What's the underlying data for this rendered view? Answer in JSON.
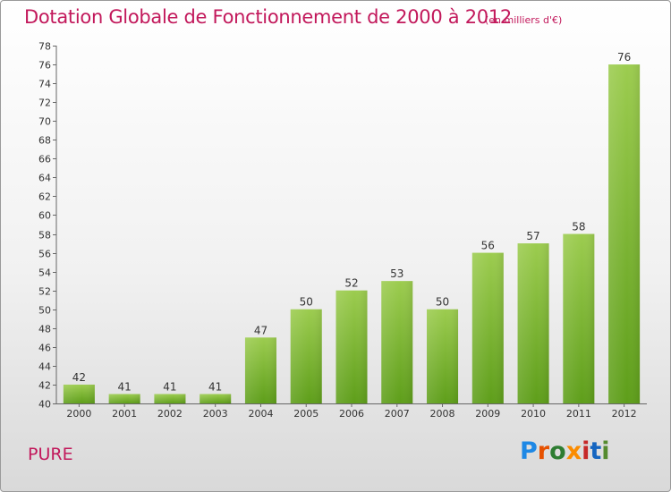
{
  "header": {
    "title": "Dotation Globale de Fonctionnement de 2000 à 2012",
    "subtitle": "(en milliers d'€)"
  },
  "footer": {
    "commune": "PURE",
    "logo_letters": [
      "P",
      "r",
      "o",
      "x",
      "i",
      "t",
      "i"
    ],
    "logo_colors": [
      "#1e88e5",
      "#e65100",
      "#2e7d32",
      "#fb8c00",
      "#c62828",
      "#1565c0",
      "#558b2f"
    ]
  },
  "colors": {
    "title": "#c2185b",
    "bar_light": "#9ccc4f",
    "bar_dark": "#5e9e1a",
    "axis": "#666666",
    "grid": "#dcdcdc"
  },
  "chart_data": {
    "type": "bar",
    "categories": [
      "2000",
      "2001",
      "2002",
      "2003",
      "2004",
      "2005",
      "2006",
      "2007",
      "2008",
      "2009",
      "2010",
      "2011",
      "2012"
    ],
    "values": [
      42,
      41,
      41,
      41,
      47,
      50,
      52,
      53,
      50,
      56,
      57,
      58,
      76
    ],
    "title": "Dotation Globale de Fonctionnement de 2000 à 2012",
    "subtitle": "(en milliers d'€)",
    "xlabel": "",
    "ylabel": "",
    "ylim": [
      40,
      78
    ],
    "ytick_step": 2,
    "grid": false,
    "data_labels": true
  }
}
